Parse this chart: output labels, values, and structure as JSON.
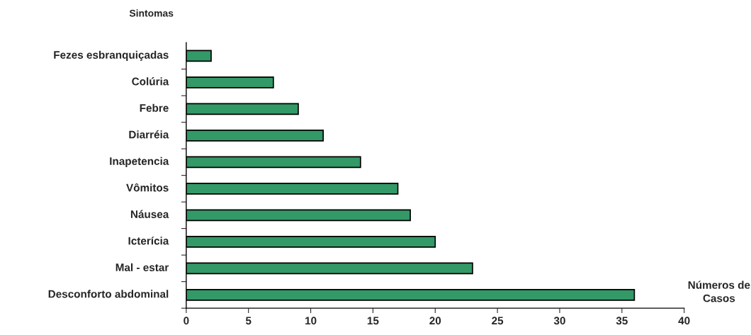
{
  "chart_data": {
    "type": "bar",
    "orientation": "horizontal",
    "ylabel": "Sintomas",
    "xlabel": "Números de\nCasos",
    "categories": [
      "Fezes esbranquiçadas",
      "Colúria",
      "Febre",
      "Diarréia",
      "Inapetencia",
      "Vômitos",
      "Náusea",
      "Icterícia",
      "Mal - estar",
      "Desconforto abdominal"
    ],
    "values": [
      2,
      7,
      9,
      11,
      14,
      17,
      18,
      20,
      23,
      36
    ],
    "color": "#339966",
    "xlim": [
      0,
      40
    ],
    "xticks": [
      0,
      5,
      10,
      15,
      20,
      25,
      30,
      35,
      40
    ],
    "grid": false,
    "legend": false
  }
}
